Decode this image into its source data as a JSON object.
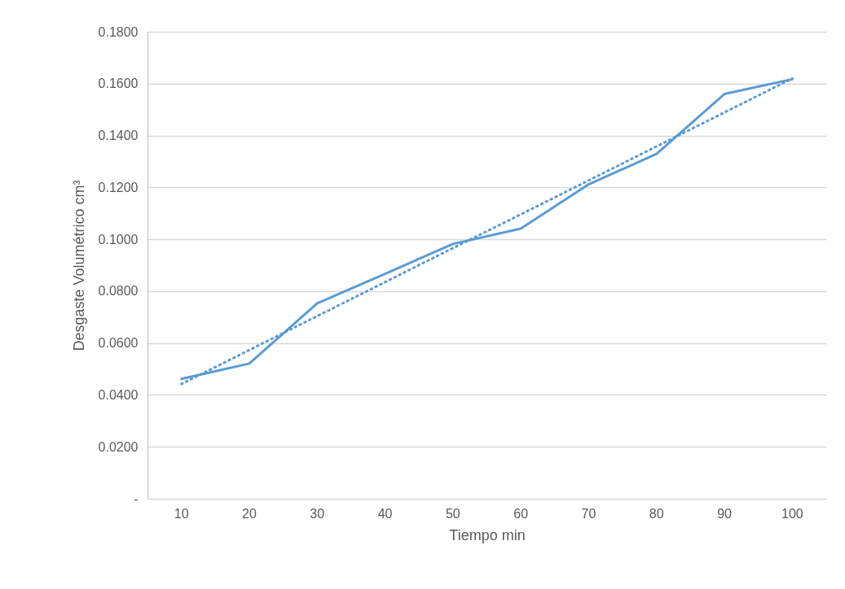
{
  "chart_data": {
    "type": "line",
    "xlabel": "Tiempo min",
    "ylabel": "Desgaste Volumétrico cm³",
    "categories": [
      "10",
      "20",
      "30",
      "40",
      "50",
      "60",
      "70",
      "80",
      "90",
      "100"
    ],
    "series": [
      {
        "color": "#5b9bd5",
        "line_style": "solid",
        "values": [
          0.0462,
          0.0521,
          0.0753,
          0.0867,
          0.0982,
          0.1041,
          0.1212,
          0.1329,
          0.156,
          0.1617
        ]
      },
      {
        "color": "#5b9bd5",
        "line_style": "dotted",
        "values": [
          0.0442,
          0.0573,
          0.0704,
          0.0835,
          0.0966,
          0.1096,
          0.1227,
          0.1358,
          0.1489,
          0.162
        ]
      }
    ],
    "ylim": [
      0,
      0.18
    ],
    "yticks": [
      {
        "value": 0,
        "label": "-"
      },
      {
        "value": 0.02,
        "label": "0.0200"
      },
      {
        "value": 0.04,
        "label": "0.0400"
      },
      {
        "value": 0.06,
        "label": "0.0600"
      },
      {
        "value": 0.08,
        "label": "0.0800"
      },
      {
        "value": 0.1,
        "label": "0.1000"
      },
      {
        "value": 0.12,
        "label": "0.1200"
      },
      {
        "value": 0.14,
        "label": "0.1400"
      },
      {
        "value": 0.16,
        "label": "0.1600"
      },
      {
        "value": 0.18,
        "label": "0.1800"
      }
    ],
    "grid": "y"
  }
}
